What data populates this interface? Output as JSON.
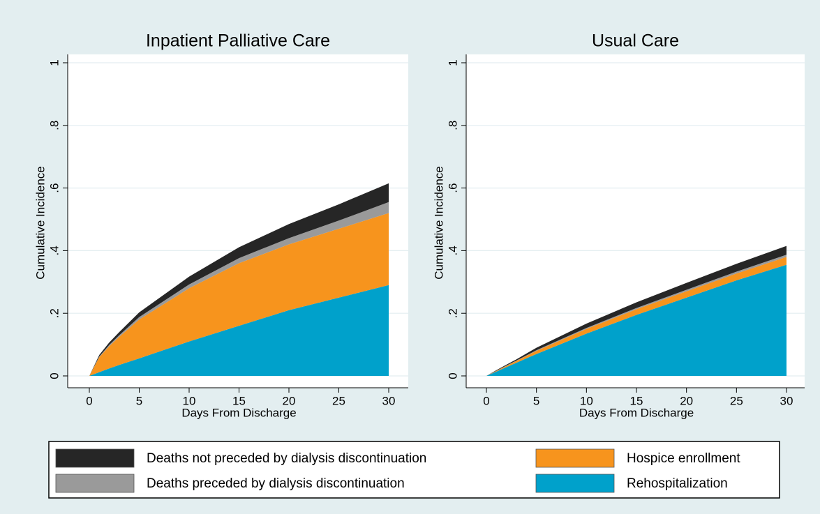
{
  "chart_data": [
    {
      "type": "stacked-area",
      "title": "Inpatient Palliative Care",
      "xlabel": "Days From Discharge",
      "ylabel": "Cumulative Incidence",
      "x": [
        0,
        1,
        2,
        3,
        5,
        10,
        15,
        20,
        25,
        30
      ],
      "series": [
        {
          "name": "Deaths not preceded by dialysis discontinuation",
          "color": "#262626",
          "values": [
            0,
            0.005,
            0.008,
            0.01,
            0.015,
            0.025,
            0.035,
            0.045,
            0.052,
            0.06
          ]
        },
        {
          "name": "Deaths preceded by dialysis discontinuation",
          "color": "#9a9a9a",
          "values": [
            0,
            0.002,
            0.004,
            0.005,
            0.008,
            0.012,
            0.016,
            0.02,
            0.026,
            0.035
          ]
        },
        {
          "name": "Hospice enrollment",
          "color": "#f7941d",
          "values": [
            0,
            0.048,
            0.071,
            0.09,
            0.124,
            0.17,
            0.2,
            0.21,
            0.22,
            0.23
          ]
        },
        {
          "name": "Rehospitalization",
          "color": "#00a1cb",
          "values": [
            0,
            0.012,
            0.024,
            0.035,
            0.056,
            0.11,
            0.16,
            0.21,
            0.25,
            0.29
          ]
        }
      ],
      "xlim": [
        0,
        30
      ],
      "xticks": [
        0,
        5,
        10,
        15,
        20,
        25,
        30
      ],
      "ylim": [
        0,
        1
      ],
      "yticks": [
        0,
        {
          "value": 0.2,
          "label": ".2"
        },
        {
          "value": 0.4,
          "label": ".4"
        },
        {
          "value": 0.6,
          "label": ".6"
        },
        {
          "value": 0.8,
          "label": ".8"
        },
        1
      ],
      "grid": true
    },
    {
      "type": "stacked-area",
      "title": "Usual Care",
      "xlabel": "Days From Discharge",
      "ylabel": "Cumulative Incidence",
      "x": [
        0,
        1,
        2,
        3,
        5,
        10,
        15,
        20,
        25,
        30
      ],
      "series": [
        {
          "name": "Deaths not preceded by dialysis discontinuation",
          "color": "#262626",
          "values": [
            0,
            0.002,
            0.003,
            0.004,
            0.008,
            0.014,
            0.018,
            0.022,
            0.025,
            0.028
          ]
        },
        {
          "name": "Deaths preceded by dialysis discontinuation",
          "color": "#9a9a9a",
          "values": [
            0,
            0.0005,
            0.001,
            0.001,
            0.002,
            0.003,
            0.004,
            0.005,
            0.006,
            0.007
          ]
        },
        {
          "name": "Hospice enrollment",
          "color": "#f7941d",
          "values": [
            0,
            0.002,
            0.004,
            0.006,
            0.01,
            0.015,
            0.018,
            0.02,
            0.022,
            0.025
          ]
        },
        {
          "name": "Rehospitalization",
          "color": "#00a1cb",
          "values": [
            0,
            0.014,
            0.028,
            0.042,
            0.07,
            0.135,
            0.195,
            0.25,
            0.305,
            0.355
          ]
        }
      ],
      "xlim": [
        0,
        30
      ],
      "xticks": [
        0,
        5,
        10,
        15,
        20,
        25,
        30
      ],
      "ylim": [
        0,
        1
      ],
      "yticks": [
        0,
        {
          "value": 0.2,
          "label": ".2"
        },
        {
          "value": 0.4,
          "label": ".4"
        },
        {
          "value": 0.6,
          "label": ".6"
        },
        {
          "value": 0.8,
          "label": ".8"
        },
        1
      ],
      "grid": true
    }
  ]
}
